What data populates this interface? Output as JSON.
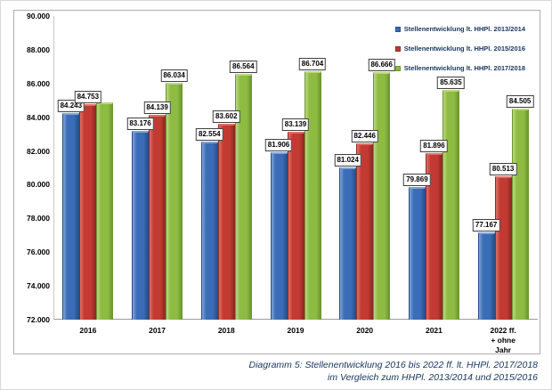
{
  "chart_data": {
    "type": "bar",
    "title": "",
    "categories": [
      "2016",
      "2017",
      "2018",
      "2019",
      "2020",
      "2021",
      "2022 ff.\n+ ohne Jahr"
    ],
    "series": [
      {
        "name": "Stellenentwicklung lt. HHPl. 2013/2014",
        "color": "#3A6CB8",
        "color_light": "#7FA3D6",
        "color_dark": "#2A4F8C",
        "values": [
          84243,
          83176,
          82554,
          81906,
          81024,
          79869,
          77167
        ],
        "data_labels": [
          "84.243",
          "83.176",
          "82.554",
          "81.906",
          "81.024",
          "79.869",
          "77.167"
        ]
      },
      {
        "name": "Stellenentwicklung lt. HHPl. 2015/2016",
        "color": "#C23A31",
        "color_light": "#DD7066",
        "color_dark": "#8E2A24",
        "values": [
          84753,
          84139,
          83602,
          83139,
          82446,
          81896,
          80513
        ],
        "data_labels": [
          "84.753",
          "84.139",
          "83.602",
          "83.139",
          "82.446",
          "81.896",
          "80.513"
        ]
      },
      {
        "name": "Stellenentwicklung lt. HHPl. 2017/2018",
        "color": "#8EBB41",
        "color_light": "#BCD581",
        "color_dark": "#6D982F",
        "values": [
          84880,
          86034,
          86564,
          86704,
          86666,
          85635,
          84505
        ],
        "data_labels": [
          null,
          "86.034",
          "86.564",
          "86.704",
          "86.666",
          "85.635",
          "84.505"
        ],
        "note": "2016 bar shows no data label; value estimated from bar height"
      }
    ],
    "ylim": [
      72000,
      90000
    ],
    "ytick_step": 2000,
    "ytick_labels": [
      "90.000",
      "88.000",
      "86.000",
      "84.000",
      "82.000",
      "80.000",
      "78.000",
      "76.000",
      "74.000",
      "72.000"
    ],
    "grid": false,
    "legend_position": "top-right"
  },
  "caption": {
    "line1": "Diagramm 5: Stellenentwicklung 2016 bis 2022 ff. lt. HHPl. 2017/2018",
    "line2": "im Vergleich zum HHPl. 2013/2014 und 2015/2016"
  },
  "colors": {
    "caption_text": "#17365D",
    "legend_text": "#17365D",
    "axis_text": "#000000",
    "frame_border": "#aeaeae",
    "background": "#ffffff"
  }
}
